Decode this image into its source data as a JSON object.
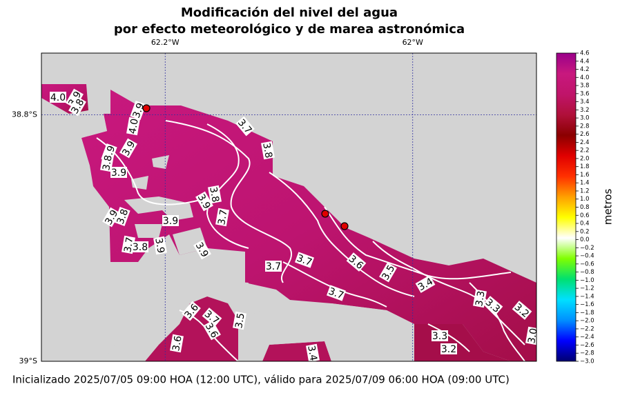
{
  "map": {
    "title": [
      "Modificación del nivel del agua",
      "por efecto meteorológico y de marea astronómica"
    ],
    "xlim": [
      -62.3,
      -61.9
    ],
    "ylim": [
      -39,
      -38.75
    ],
    "xticks": [
      {
        "value": -62.2,
        "label": "62.2°W"
      },
      {
        "value": -62,
        "label": "62°W"
      }
    ],
    "yticks": [
      {
        "value": -38.8,
        "label": "38.8°S"
      },
      {
        "value": -39,
        "label": "39°S"
      }
    ],
    "grid": true,
    "contour_labels": [
      "4.0",
      "3.9",
      "3.8",
      "3.9",
      "4.0",
      "3.7",
      "3.8",
      "3.9",
      "3.9",
      "3.8",
      "3.9",
      "3.8",
      "3.9",
      "3.7",
      "3.9",
      "3.8",
      "3.9",
      "3.7",
      "3.8",
      "3.9",
      "3.9",
      "3.7",
      "3.7",
      "3.6",
      "3.5",
      "3.4",
      "3.7",
      "3.3",
      "3.3",
      "3.2",
      "3.6",
      "3.7",
      "3.6",
      "3.5",
      "3.6",
      "3.3",
      "3.2",
      "3.0",
      "3.4"
    ],
    "colorbar": {
      "label": "metros",
      "lim": [
        -3.0,
        4.6
      ],
      "colors": [
        "#000070",
        "#0000ff",
        "#0090ff",
        "#00e0ff",
        "#00e070",
        "#80ff00",
        "#ffffff",
        "#ffff00",
        "#ffa000",
        "#ff3000",
        "#e00000",
        "#8b0000",
        "#b0103a",
        "#c0146a",
        "#c8187e",
        "#9a008a"
      ],
      "ticks": [
        {
          "value": -3.0,
          "label": "−3.0"
        },
        {
          "value": -2.8,
          "label": "−2.8"
        },
        {
          "value": -2.6,
          "label": "−2.6"
        },
        {
          "value": -2.4,
          "label": "−2.4"
        },
        {
          "value": -2.2,
          "label": "−2.2"
        },
        {
          "value": -2.0,
          "label": "−2.0"
        },
        {
          "value": -1.8,
          "label": "−1.8"
        },
        {
          "value": -1.6,
          "label": "−1.6"
        },
        {
          "value": -1.4,
          "label": "−1.4"
        },
        {
          "value": -1.2,
          "label": "−1.2"
        },
        {
          "value": -1.0,
          "label": "−1.0"
        },
        {
          "value": -0.8,
          "label": "−0.8"
        },
        {
          "value": -0.6,
          "label": "−0.6"
        },
        {
          "value": -0.4,
          "label": "−0.4"
        },
        {
          "value": -0.2,
          "label": "−0.2"
        },
        {
          "value": 0,
          "label": "0.0"
        },
        {
          "value": 0.2,
          "label": "0.2"
        },
        {
          "value": 0.4,
          "label": "0.4"
        },
        {
          "value": 0.6,
          "label": "0.6"
        },
        {
          "value": 0.8,
          "label": "0.8"
        },
        {
          "value": 1.0,
          "label": "1.0"
        },
        {
          "value": 1.2,
          "label": "1.2"
        },
        {
          "value": 1.4,
          "label": "1.4"
        },
        {
          "value": 1.6,
          "label": "1.6"
        },
        {
          "value": 1.8,
          "label": "1.8"
        },
        {
          "value": 2.0,
          "label": "2.0"
        },
        {
          "value": 2.2,
          "label": "2.2"
        },
        {
          "value": 2.4,
          "label": "2.4"
        },
        {
          "value": 2.6,
          "label": "2.6"
        },
        {
          "value": 2.8,
          "label": "2.8"
        },
        {
          "value": 3.0,
          "label": "3.0"
        },
        {
          "value": 3.2,
          "label": "3.2"
        },
        {
          "value": 3.4,
          "label": "3.4"
        },
        {
          "value": 3.6,
          "label": "3.6"
        },
        {
          "value": 3.8,
          "label": "3.8"
        },
        {
          "value": 4.0,
          "label": "4.0"
        },
        {
          "value": 4.2,
          "label": "4.2"
        },
        {
          "value": 4.4,
          "label": "4.4"
        },
        {
          "value": 4.6,
          "label": "4.6"
        }
      ]
    },
    "footer": "Inicializado 2025/07/05 09:00 HOA (12:00 UTC), válido para 2025/07/09 06:00 HOA (09:00 UTC)"
  }
}
